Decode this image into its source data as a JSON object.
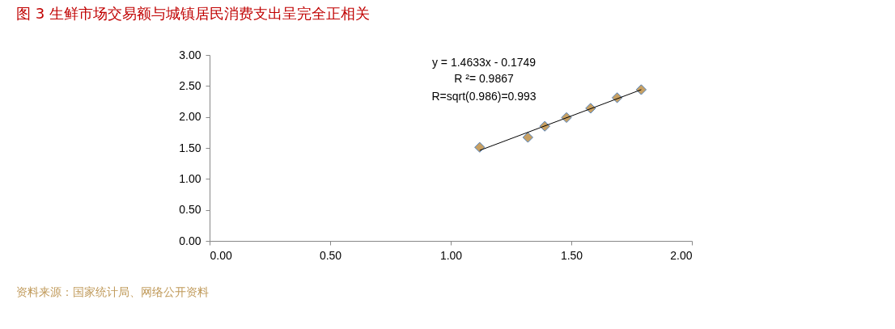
{
  "chart_data": {
    "type": "scatter",
    "title": "图 3  生鲜市场交易额与城镇居民消费支出呈完全正相关",
    "xlim": [
      0,
      2
    ],
    "xticks": [
      {
        "value": 0,
        "label": "0.00"
      },
      {
        "value": 0.5,
        "label": "0.50"
      },
      {
        "value": 1,
        "label": "1.00"
      },
      {
        "value": 1.5,
        "label": "1.50"
      },
      {
        "value": 2,
        "label": "2.00"
      }
    ],
    "ylim": [
      0,
      3
    ],
    "yticks": [
      {
        "value": 0,
        "label": "0.00"
      },
      {
        "value": 0.5,
        "label": "0.50"
      },
      {
        "value": 1,
        "label": "1.00"
      },
      {
        "value": 1.5,
        "label": "1.50"
      },
      {
        "value": 2,
        "label": "2.00"
      },
      {
        "value": 2.5,
        "label": "2.50"
      },
      {
        "value": 3,
        "label": "3.00"
      }
    ],
    "grid": false,
    "series": [
      {
        "color": "#c8a062",
        "marker": "diamond",
        "x": [
          1.12,
          1.32,
          1.39,
          1.48,
          1.58,
          1.69,
          1.79
        ],
        "values": [
          1.51,
          1.67,
          1.85,
          1.99,
          2.14,
          2.31,
          2.44
        ]
      },
      {
        "type": "line",
        "color": "#000000",
        "x": [
          1.12,
          1.79
        ],
        "values": [
          1.46,
          2.44
        ]
      }
    ],
    "annotations": [
      "y = 1.4633x - 0.1749",
      "R ²= 0.9867",
      "R=sqrt(0.986)=0.993",
      "资料来源：国家统计局、网络公开资料"
    ]
  }
}
